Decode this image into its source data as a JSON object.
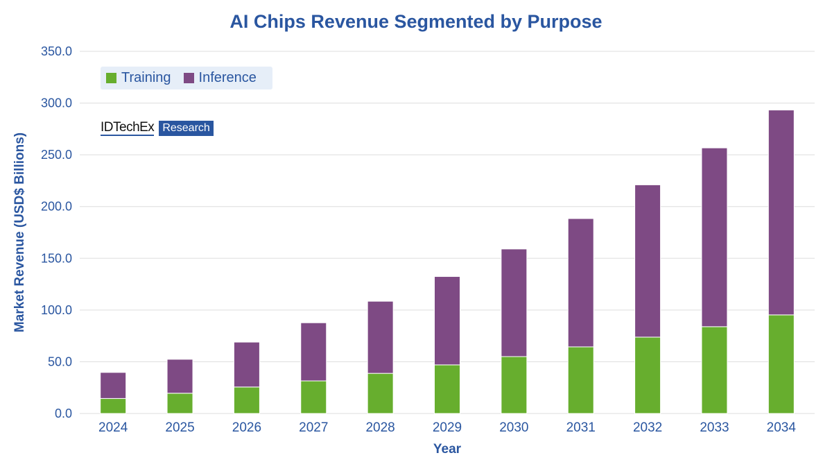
{
  "chart_data": {
    "type": "bar",
    "stacked": true,
    "title": "AI Chips Revenue Segmented by Purpose",
    "xlabel": "Year",
    "ylabel": "Market Revenue (USD$ Billions)",
    "ylim": [
      0,
      350
    ],
    "yticks": [
      "0.0",
      "50.0",
      "100.0",
      "150.0",
      "200.0",
      "250.0",
      "300.0",
      "350.0"
    ],
    "grid": true,
    "legend_placement": "top-left",
    "categories": [
      "2024",
      "2025",
      "2026",
      "2027",
      "2028",
      "2029",
      "2030",
      "2031",
      "2032",
      "2033",
      "2034"
    ],
    "series": [
      {
        "name": "Training",
        "color": "#67ae2e",
        "values": [
          14.5,
          19.6,
          25.6,
          31.5,
          38.8,
          47.0,
          55.0,
          64.4,
          73.8,
          83.9,
          95.3
        ]
      },
      {
        "name": "Inference",
        "color": "#7e4a84",
        "values": [
          25.2,
          32.8,
          43.4,
          56.2,
          69.7,
          85.4,
          104.0,
          124.0,
          147.2,
          172.8,
          198.0
        ]
      }
    ]
  },
  "logo": {
    "brand": "IDTechEx",
    "tag": "Research"
  },
  "colors": {
    "title": "#2a56a0",
    "grid": "#dddddd"
  }
}
